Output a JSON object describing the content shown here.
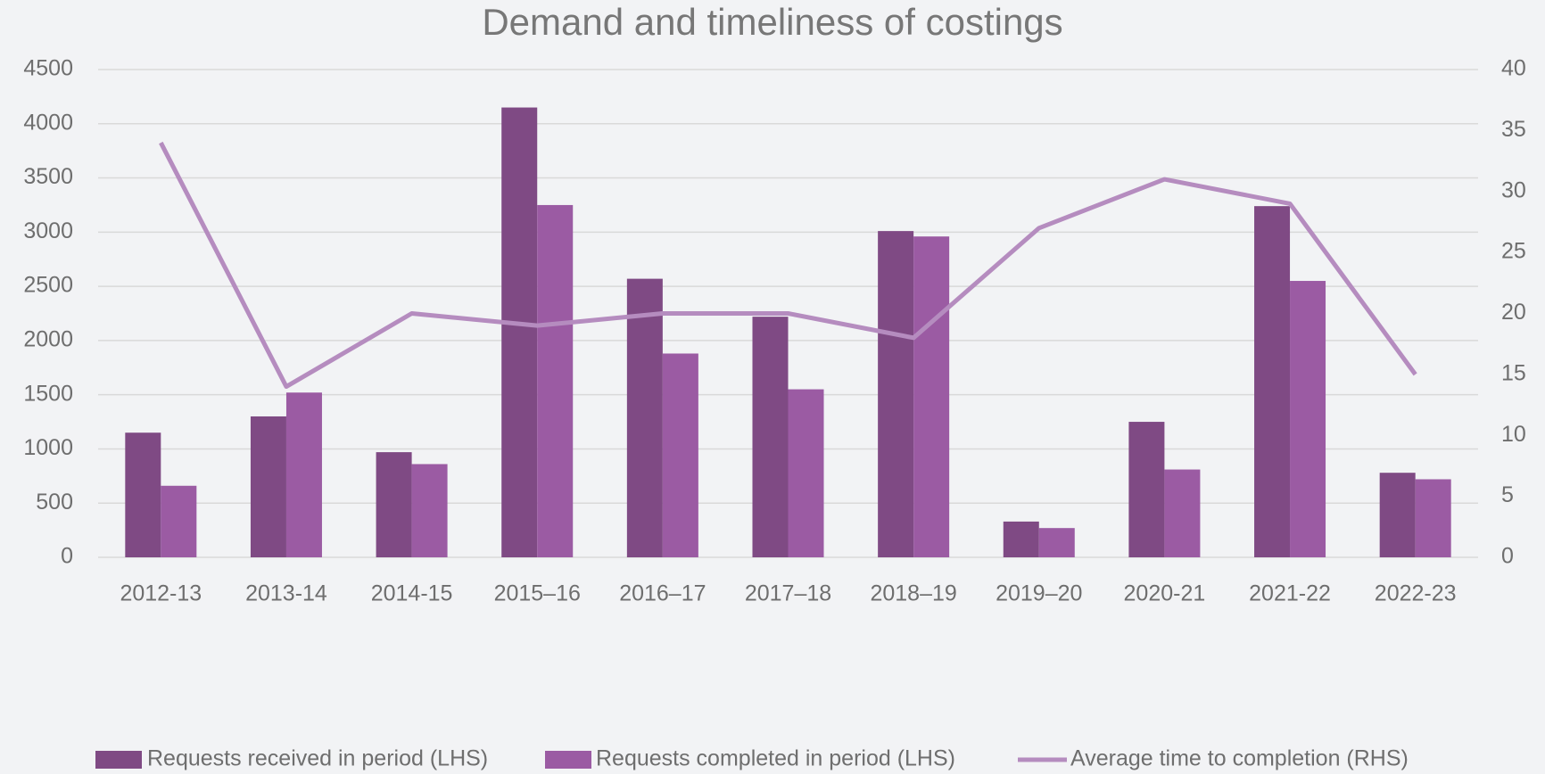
{
  "chart_data": {
    "type": "bar",
    "title": "Demand and timeliness of costings",
    "categories": [
      "2012-13",
      "2013-14",
      "2014-15",
      "2015–16",
      "2016–17",
      "2017–18",
      "2018–19",
      "2019–20",
      "2020-21",
      "2021-22",
      "2022-23"
    ],
    "series": [
      {
        "name": "Requests received in period (LHS)",
        "color": "#7f4a84",
        "values": [
          1150,
          1300,
          970,
          4150,
          2570,
          2220,
          3010,
          330,
          1250,
          3240,
          780
        ]
      },
      {
        "name": "Requests completed in period (LHS)",
        "color": "#9b5ba3",
        "values": [
          660,
          1520,
          860,
          3250,
          1880,
          1550,
          2960,
          270,
          810,
          2550,
          720
        ]
      },
      {
        "name": "Average time to completion (RHS)",
        "color": "#b58cbf",
        "type": "line",
        "axis": "y2",
        "values": [
          34,
          14,
          20,
          19,
          20,
          20,
          18,
          27,
          31,
          29,
          15
        ]
      }
    ],
    "ylim": [
      0,
      4500
    ],
    "yticks": [
      0,
      500,
      1000,
      1500,
      2000,
      2500,
      3000,
      3500,
      4000,
      4500
    ],
    "y2lim": [
      0,
      40
    ],
    "y2ticks": [
      0,
      5,
      10,
      15,
      20,
      25,
      30,
      35,
      40
    ],
    "grid": true,
    "legend": "bottom"
  }
}
